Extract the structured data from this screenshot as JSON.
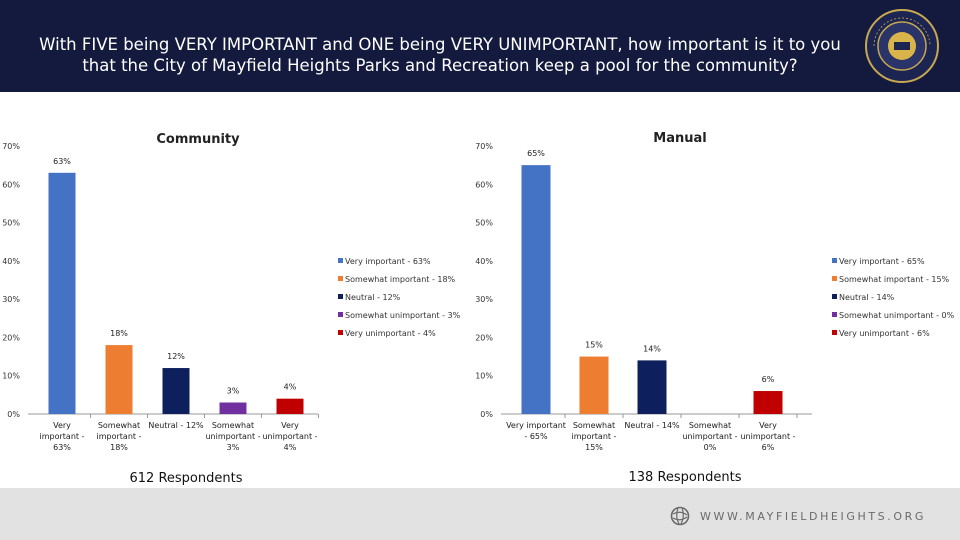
{
  "header": {
    "title": "With FIVE being VERY IMPORTANT and ONE being VERY UNIMPORTANT, how important is it to you that the City of Mayfield Heights Parks and Recreation keep a pool for the community?",
    "seal_text": "THE CITY OF MAYFIELD HEIGHTS OHIO"
  },
  "footer": {
    "url": "WWW.MAYFIELDHEIGHTS.ORG"
  },
  "colors": {
    "header_bg": "#141a3d",
    "series": [
      "#4472c4",
      "#ed7d31",
      "#0d1f5c",
      "#7030a0",
      "#c00000"
    ]
  },
  "chart_data": [
    {
      "type": "bar",
      "title": "Community",
      "categories": [
        [
          "Very",
          "important -",
          "63%"
        ],
        [
          "Somewhat",
          "important -",
          "18%"
        ],
        [
          "Neutral - 12%"
        ],
        [
          "Somewhat",
          "unimportant -",
          "3%"
        ],
        [
          "Very",
          "unimportant -",
          "4%"
        ]
      ],
      "values": [
        63,
        18,
        12,
        3,
        4
      ],
      "data_labels": [
        "63%",
        "18%",
        "12%",
        "3%",
        "4%"
      ],
      "legend": [
        "Very important - 63%",
        "Somewhat important - 18%",
        "Neutral - 12%",
        "Somewhat unimportant - 3%",
        "Very unimportant - 4%"
      ],
      "legend_position": "right",
      "ylim": [
        0,
        70
      ],
      "yticks": [
        "0%",
        "10%",
        "20%",
        "30%",
        "40%",
        "50%",
        "60%",
        "70%"
      ],
      "grid": false,
      "footnote": "612 Respondents"
    },
    {
      "type": "bar",
      "title": "Manual",
      "categories": [
        [
          "Very important",
          "- 65%"
        ],
        [
          "Somewhat",
          "important -",
          "15%"
        ],
        [
          "Neutral - 14%"
        ],
        [
          "Somewhat",
          "unimportant -",
          "0%"
        ],
        [
          "Very",
          "unimportant -",
          "6%"
        ]
      ],
      "values": [
        65,
        15,
        14,
        0,
        6
      ],
      "data_labels": [
        "65%",
        "15%",
        "14%",
        "",
        "6%"
      ],
      "legend": [
        "Very important - 65%",
        "Somewhat important - 15%",
        "Neutral - 14%",
        "Somewhat unimportant - 0%",
        "Very unimportant - 6%"
      ],
      "legend_position": "right",
      "ylim": [
        0,
        70
      ],
      "yticks": [
        "0%",
        "10%",
        "20%",
        "30%",
        "40%",
        "50%",
        "60%",
        "70%"
      ],
      "grid": false,
      "footnote": "138 Respondents"
    }
  ]
}
